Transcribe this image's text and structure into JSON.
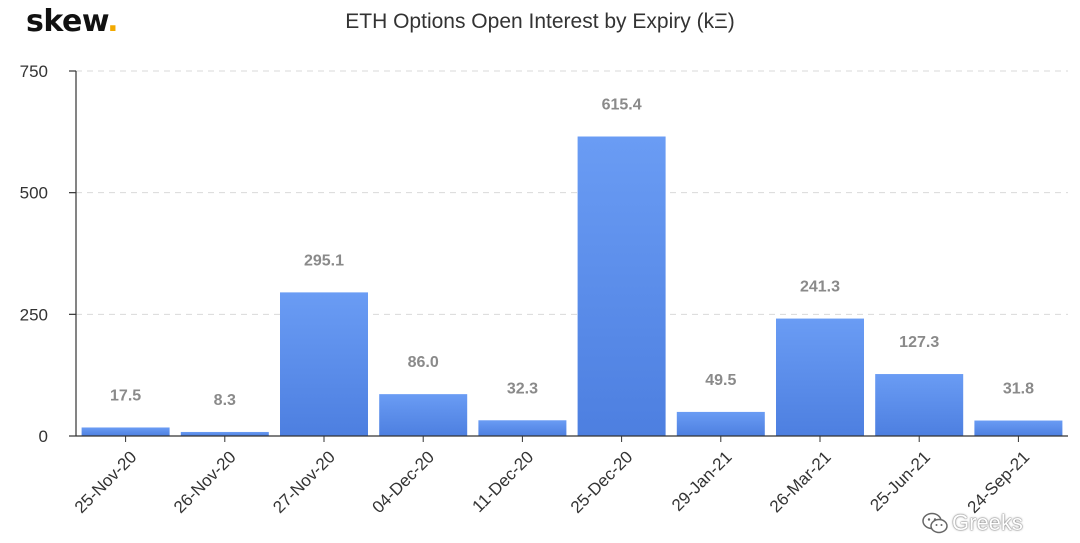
{
  "header": {
    "logo_text": "skew",
    "logo_dot": ".",
    "title": "ETH Options Open Interest by Expiry (kΞ)"
  },
  "watermark": {
    "text": "Greeks",
    "icon": "wechat-icon"
  },
  "colors": {
    "bar_top": "#6a9cf4",
    "bar_bottom": "#4d7fe0",
    "grid": "#d9d9d9"
  },
  "chart_data": {
    "type": "bar",
    "title": "ETH Options Open Interest by Expiry (kΞ)",
    "categories": [
      "25-Nov-20",
      "26-Nov-20",
      "27-Nov-20",
      "04-Dec-20",
      "11-Dec-20",
      "25-Dec-20",
      "29-Jan-21",
      "26-Mar-21",
      "25-Jun-21",
      "24-Sep-21"
    ],
    "values": [
      17.5,
      8.3,
      295.1,
      86.0,
      32.3,
      615.4,
      49.5,
      241.3,
      127.3,
      31.8
    ],
    "value_labels": [
      "17.5",
      "8.3",
      "295.1",
      "86.0",
      "32.3",
      "615.4",
      "49.5",
      "241.3",
      "127.3",
      "31.8"
    ],
    "ylim": [
      0,
      750
    ],
    "yticks": [
      0,
      250,
      500,
      750
    ],
    "ytick_labels": [
      "0",
      "250",
      "500",
      "750"
    ],
    "grid": true,
    "xlabel": "",
    "ylabel": ""
  }
}
